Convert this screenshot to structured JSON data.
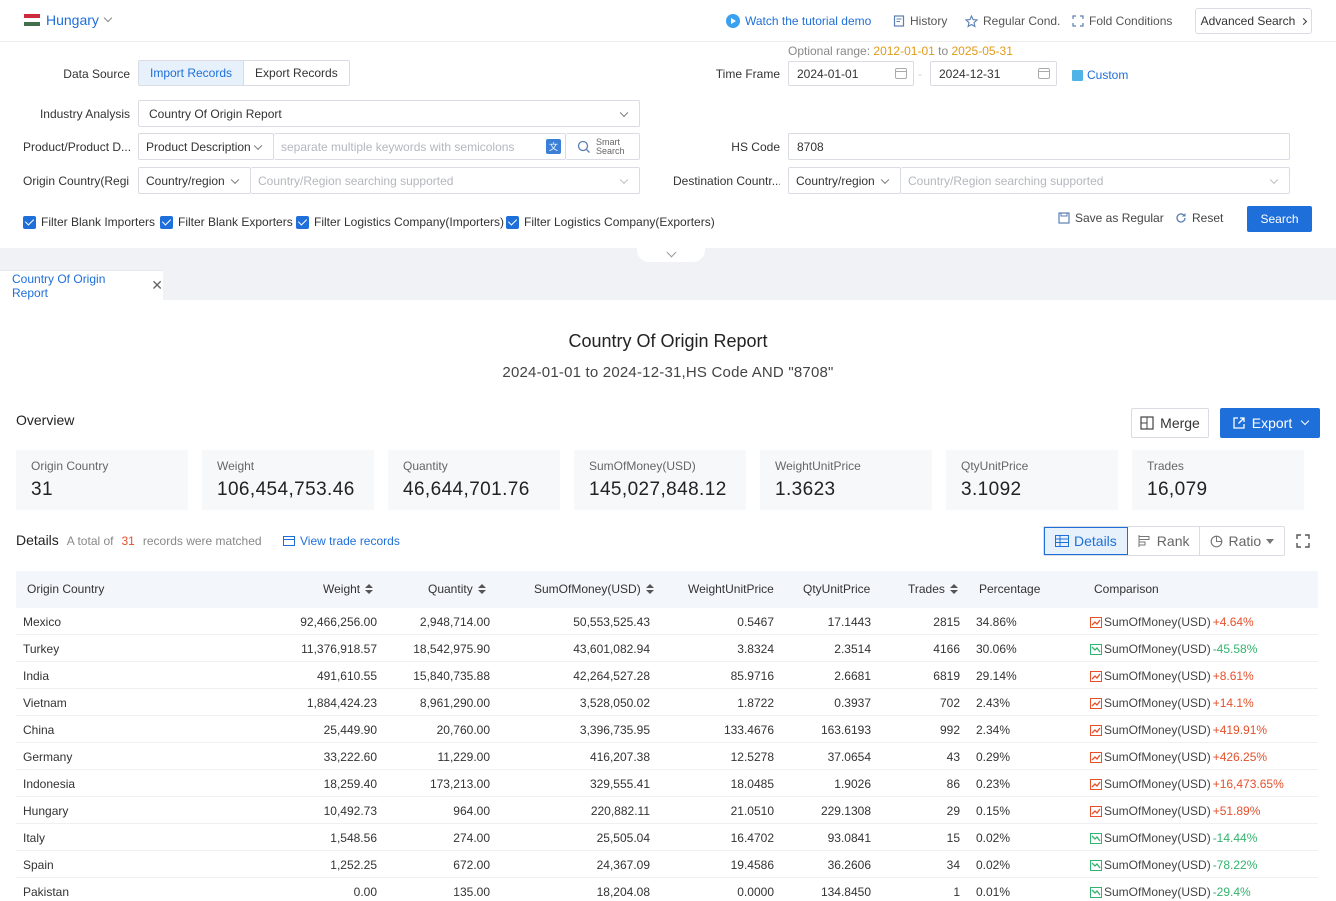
{
  "topbar": {
    "country": "Hungary",
    "tutorial": "Watch the tutorial demo",
    "history": "History",
    "regular_cond": "Regular Cond.",
    "fold_conditions": "Fold Conditions",
    "advanced_search": "Advanced Search"
  },
  "form": {
    "optional_range_label": "Optional range",
    "optional_range_start": "2012-01-01",
    "optional_range_to": "to",
    "optional_range_end": "2025-05-31",
    "data_source_label": "Data Source",
    "data_source_options": [
      "Import Records",
      "Export Records"
    ],
    "time_frame_label": "Time Frame",
    "date_from": "2024-01-01",
    "date_sep": "-",
    "date_to": "2024-12-31",
    "custom_label": "Custom",
    "industry_label": "Industry Analysis",
    "industry_value": "Country Of Origin Report",
    "product_label": "Product/Product D...",
    "product_select": "Product Description",
    "product_placeholder": "separate multiple keywords with semicolons",
    "smart_search": "Smart Search",
    "hs_label": "HS Code",
    "hs_value": "8708",
    "origin_label": "Origin Country(Regi...",
    "origin_select": "Country/region",
    "origin_placeholder": "Country/Region searching supported",
    "dest_label": "Destination Countr...",
    "dest_select": "Country/region",
    "dest_placeholder": "Country/Region searching supported",
    "filters": [
      "Filter Blank Importers",
      "Filter Blank Exporters",
      "Filter Logistics Company(Importers)",
      "Filter Logistics Company(Exporters)"
    ],
    "save_regular": "Save as Regular",
    "reset": "Reset",
    "search": "Search"
  },
  "tab": {
    "label": "Country Of Origin Report"
  },
  "report": {
    "title": "Country Of Origin Report",
    "subtitle": "2024-01-01 to 2024-12-31,HS Code AND \"8708\"",
    "overview": "Overview",
    "merge": "Merge",
    "export": "Export",
    "stats": [
      {
        "label": "Origin Country",
        "value": "31"
      },
      {
        "label": "Weight",
        "value": "106,454,753.46"
      },
      {
        "label": "Quantity",
        "value": "46,644,701.76"
      },
      {
        "label": "SumOfMoney(USD)",
        "value": "145,027,848.12"
      },
      {
        "label": "WeightUnitPrice",
        "value": "1.3623"
      },
      {
        "label": "QtyUnitPrice",
        "value": "3.1092"
      },
      {
        "label": "Trades",
        "value": "16,079"
      }
    ],
    "details": "Details",
    "total_prefix": "A total of",
    "total_count": "31",
    "total_suffix": "records were matched",
    "view_trade_records": "View trade records",
    "view_tabs": [
      "Details",
      "Rank",
      "Ratio"
    ]
  },
  "table": {
    "headers": [
      "Origin Country",
      "Weight",
      "Quantity",
      "SumOfMoney(USD)",
      "WeightUnitPrice",
      "QtyUnitPrice",
      "Trades",
      "Percentage",
      "Comparison"
    ],
    "rows": [
      {
        "country": "Mexico",
        "weight": "92,466,256.00",
        "qty": "2,948,714.00",
        "money": "50,553,525.43",
        "wup": "0.5467",
        "qup": "17.1443",
        "trades": "2815",
        "pct": "34.86%",
        "cmp_label": "SumOfMoney(USD)",
        "cmp": "+4.64%",
        "dir": "up"
      },
      {
        "country": "Turkey",
        "weight": "11,376,918.57",
        "qty": "18,542,975.90",
        "money": "43,601,082.94",
        "wup": "3.8324",
        "qup": "2.3514",
        "trades": "4166",
        "pct": "30.06%",
        "cmp_label": "SumOfMoney(USD)",
        "cmp": "-45.58%",
        "dir": "down"
      },
      {
        "country": "India",
        "weight": "491,610.55",
        "qty": "15,840,735.88",
        "money": "42,264,527.28",
        "wup": "85.9716",
        "qup": "2.6681",
        "trades": "6819",
        "pct": "29.14%",
        "cmp_label": "SumOfMoney(USD)",
        "cmp": "+8.61%",
        "dir": "up"
      },
      {
        "country": "Vietnam",
        "weight": "1,884,424.23",
        "qty": "8,961,290.00",
        "money": "3,528,050.02",
        "wup": "1.8722",
        "qup": "0.3937",
        "trades": "702",
        "pct": "2.43%",
        "cmp_label": "SumOfMoney(USD)",
        "cmp": "+14.1%",
        "dir": "up"
      },
      {
        "country": "China",
        "weight": "25,449.90",
        "qty": "20,760.00",
        "money": "3,396,735.95",
        "wup": "133.4676",
        "qup": "163.6193",
        "trades": "992",
        "pct": "2.34%",
        "cmp_label": "SumOfMoney(USD)",
        "cmp": "+419.91%",
        "dir": "up"
      },
      {
        "country": "Germany",
        "weight": "33,222.60",
        "qty": "11,229.00",
        "money": "416,207.38",
        "wup": "12.5278",
        "qup": "37.0654",
        "trades": "43",
        "pct": "0.29%",
        "cmp_label": "SumOfMoney(USD)",
        "cmp": "+426.25%",
        "dir": "up"
      },
      {
        "country": "Indonesia",
        "weight": "18,259.40",
        "qty": "173,213.00",
        "money": "329,555.41",
        "wup": "18.0485",
        "qup": "1.9026",
        "trades": "86",
        "pct": "0.23%",
        "cmp_label": "SumOfMoney(USD)",
        "cmp": "+16,473.65%",
        "dir": "up"
      },
      {
        "country": "Hungary",
        "weight": "10,492.73",
        "qty": "964.00",
        "money": "220,882.11",
        "wup": "21.0510",
        "qup": "229.1308",
        "trades": "29",
        "pct": "0.15%",
        "cmp_label": "SumOfMoney(USD)",
        "cmp": "+51.89%",
        "dir": "up"
      },
      {
        "country": "Italy",
        "weight": "1,548.56",
        "qty": "274.00",
        "money": "25,505.04",
        "wup": "16.4702",
        "qup": "93.0841",
        "trades": "15",
        "pct": "0.02%",
        "cmp_label": "SumOfMoney(USD)",
        "cmp": "-14.44%",
        "dir": "down"
      },
      {
        "country": "Spain",
        "weight": "1,252.25",
        "qty": "672.00",
        "money": "24,367.09",
        "wup": "19.4586",
        "qup": "36.2606",
        "trades": "34",
        "pct": "0.02%",
        "cmp_label": "SumOfMoney(USD)",
        "cmp": "-78.22%",
        "dir": "down"
      },
      {
        "country": "Pakistan",
        "weight": "0.00",
        "qty": "135.00",
        "money": "18,204.08",
        "wup": "0.0000",
        "qup": "134.8450",
        "trades": "1",
        "pct": "0.01%",
        "cmp_label": "SumOfMoney(USD)",
        "cmp": "-29.4%",
        "dir": "down"
      }
    ]
  },
  "colors": {
    "accent": "#1e6fd9",
    "up": "#e5502b",
    "down": "#34b36e"
  }
}
